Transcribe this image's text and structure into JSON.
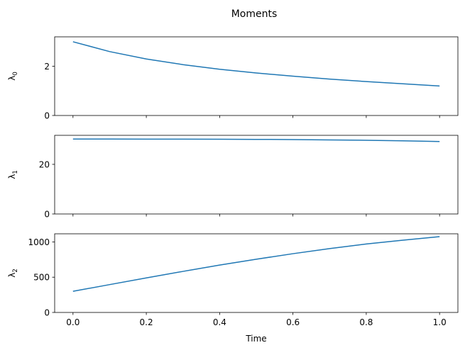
{
  "chart_data": {
    "type": "line",
    "title": "Moments",
    "xlabel": "Time",
    "xlim": [
      -0.05,
      1.05
    ],
    "xticks": [
      "0.0",
      "0.2",
      "0.4",
      "0.6",
      "0.8",
      "1.0"
    ],
    "line_color": "#1f77b4",
    "grid": false,
    "subplots": [
      {
        "ylabel": "λ",
        "ylabel_sub": "0",
        "ylim": [
          0,
          3.2
        ],
        "yticks": [
          0,
          2
        ],
        "x": [
          0.0,
          0.1,
          0.2,
          0.3,
          0.4,
          0.5,
          0.6,
          0.7,
          0.8,
          0.9,
          1.0
        ],
        "y": [
          3.0,
          2.6,
          2.3,
          2.07,
          1.88,
          1.73,
          1.6,
          1.48,
          1.38,
          1.29,
          1.2
        ]
      },
      {
        "ylabel": "λ",
        "ylabel_sub": "1",
        "ylim": [
          0,
          31.7
        ],
        "yticks": [
          0,
          20
        ],
        "x": [
          0.0,
          0.1,
          0.2,
          0.3,
          0.4,
          0.5,
          0.6,
          0.7,
          0.8,
          0.9,
          1.0
        ],
        "y": [
          30.2,
          30.19,
          30.18,
          30.16,
          30.13,
          30.07,
          30.0,
          29.85,
          29.7,
          29.5,
          29.2
        ]
      },
      {
        "ylabel": "λ",
        "ylabel_sub": "2",
        "ylim": [
          0,
          1115
        ],
        "yticks": [
          0,
          500,
          1000
        ],
        "x": [
          0.0,
          0.1,
          0.2,
          0.3,
          0.4,
          0.5,
          0.6,
          0.7,
          0.8,
          0.9,
          1.0
        ],
        "y": [
          300,
          395,
          490,
          582,
          672,
          755,
          833,
          905,
          970,
          1025,
          1075
        ]
      }
    ]
  }
}
